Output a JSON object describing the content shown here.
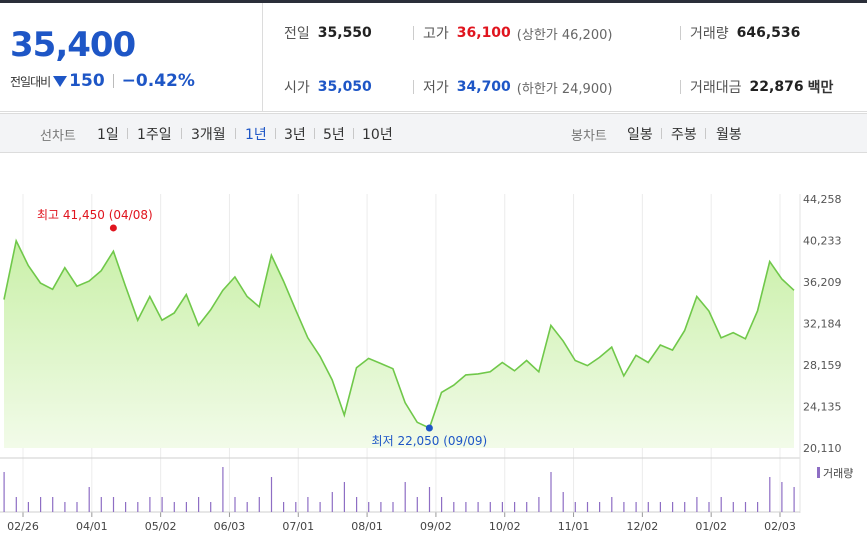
{
  "summary": {
    "price": "35,400",
    "change_label": "전일대비",
    "change_value": "150",
    "change_pct": "−0.42%",
    "prev_close_label": "전일",
    "prev_close": "35,550",
    "open_label": "시가",
    "open": "35,050",
    "high_label": "고가",
    "high": "36,100",
    "upper_limit": "(상한가 46,200)",
    "low_label": "저가",
    "low": "34,700",
    "lower_limit": "(하한가 24,900)",
    "volume_label": "거래량",
    "volume": "646,536",
    "amount_label": "거래대금",
    "amount": "22,876",
    "amount_unit": "백만",
    "colors": {
      "down": "#1e56c6",
      "up": "#e0141e"
    }
  },
  "tabs": {
    "line_label": "선차트",
    "line_periods": [
      "1일",
      "1주일",
      "3개월",
      "1년",
      "3년",
      "5년",
      "10년"
    ],
    "line_active": "1년",
    "candle_label": "봉차트",
    "candle_periods": [
      "일봉",
      "주봉",
      "월봉"
    ]
  },
  "chart_data": {
    "type": "area",
    "x_tick_labels": [
      "02/26",
      "04/01",
      "05/02",
      "06/03",
      "07/01",
      "08/01",
      "09/02",
      "10/02",
      "11/01",
      "12/02",
      "01/02",
      "02/03"
    ],
    "y_tick_labels": [
      "44,258",
      "40,233",
      "36,209",
      "32,184",
      "28,159",
      "24,135",
      "20,110"
    ],
    "ylim": [
      20110,
      44258
    ],
    "series": [
      {
        "x": [
          "02/26",
          "03/04",
          "03/08",
          "03/13",
          "03/18",
          "03/22",
          "03/27",
          "04/01",
          "04/05",
          "04/08",
          "04/15",
          "04/22",
          "04/29",
          "05/02",
          "05/09",
          "05/16",
          "05/23",
          "05/30",
          "06/03",
          "06/10",
          "06/17",
          "06/24",
          "07/01",
          "07/05",
          "07/12",
          "07/19",
          "07/26",
          "08/01",
          "08/05",
          "08/09",
          "08/16",
          "08/23",
          "08/30",
          "09/02",
          "09/05",
          "09/09",
          "09/16",
          "09/23",
          "09/30",
          "10/02",
          "10/10",
          "10/17",
          "10/24",
          "10/31",
          "11/01",
          "11/05",
          "11/12",
          "11/19",
          "11/26",
          "12/02",
          "12/06",
          "12/13",
          "12/20",
          "12/27",
          "01/02",
          "01/10",
          "01/17",
          "01/24",
          "01/31",
          "02/03",
          "02/07",
          "02/10",
          "02/14",
          "02/19",
          "02/21",
          "02/24"
        ],
        "values": [
          34500,
          40200,
          37800,
          36100,
          35500,
          37600,
          35800,
          36300,
          37300,
          39200,
          35800,
          32500,
          34800,
          32500,
          33200,
          35000,
          32000,
          33500,
          35400,
          36700,
          34800,
          33800,
          38800,
          36300,
          33500,
          30800,
          29000,
          26700,
          23300,
          27900,
          28800,
          28300,
          27800,
          24500,
          22600,
          22050,
          25500,
          26200,
          27200,
          27300,
          27500,
          28400,
          27600,
          28600,
          27500,
          32000,
          30500,
          28600,
          28100,
          28900,
          29900,
          27100,
          29100,
          28400,
          30100,
          29600,
          31500,
          34800,
          33400,
          30800,
          31300,
          30700,
          33400,
          38200,
          36500,
          35400
        ]
      }
    ],
    "volume": [
      8,
      3,
      2,
      3,
      3,
      2,
      2,
      5,
      3,
      3,
      2,
      2,
      3,
      3,
      2,
      2,
      3,
      2,
      9,
      3,
      2,
      3,
      7,
      2,
      2,
      3,
      2,
      4,
      6,
      3,
      2,
      2,
      2,
      6,
      3,
      5,
      3,
      2,
      2,
      2,
      2,
      2,
      2,
      2,
      3,
      8,
      4,
      2,
      2,
      2,
      3,
      2,
      2,
      2,
      2,
      2,
      2,
      3,
      2,
      3,
      2,
      2,
      2,
      7,
      6,
      5
    ],
    "volume_label": "거래량",
    "max_annotation": "최고 41,450 (04/08)",
    "min_annotation": "최저 22,050 (09/09)",
    "colors": {
      "line": "#70c84a",
      "fill_top": "#c9f0a8",
      "fill_bottom": "#f2fbe9",
      "volume": "#8e6ec4",
      "max_marker": "#e0141e",
      "min_marker": "#1e56c6"
    }
  }
}
